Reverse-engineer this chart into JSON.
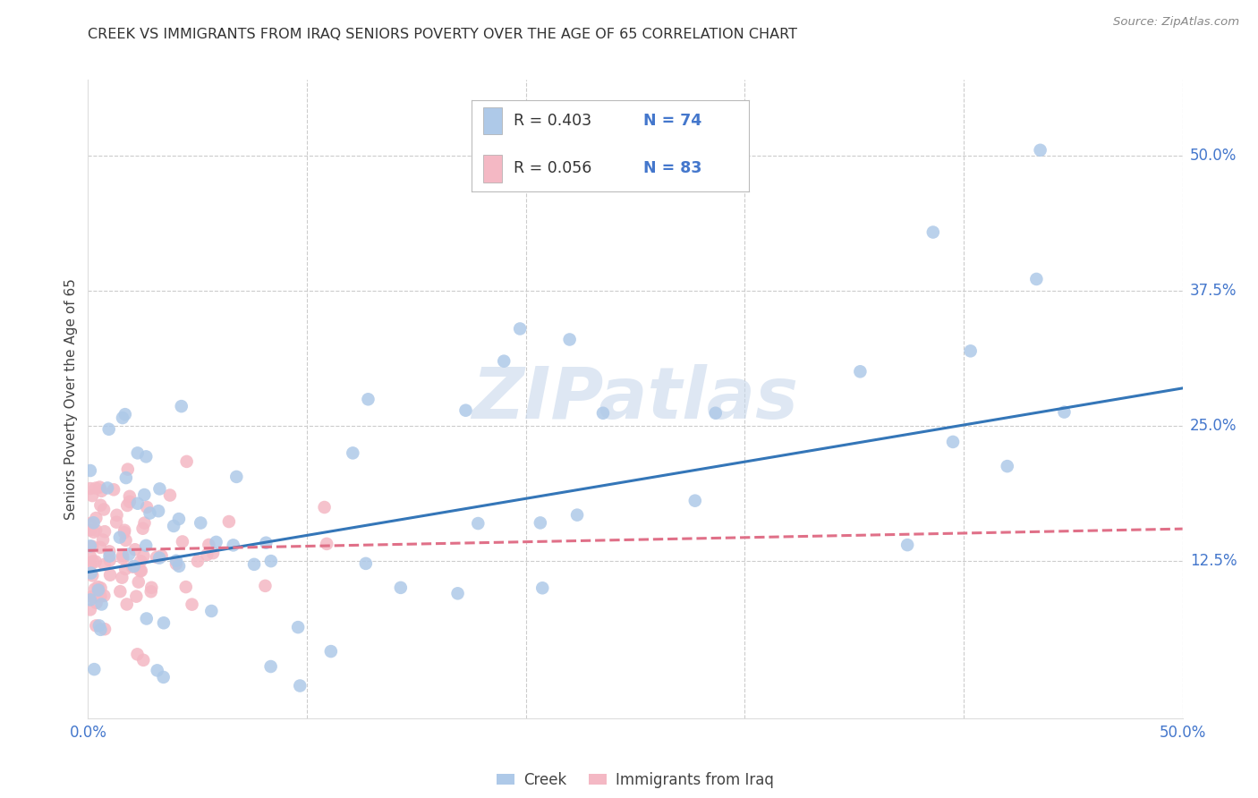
{
  "title": "CREEK VS IMMIGRANTS FROM IRAQ SENIORS POVERTY OVER THE AGE OF 65 CORRELATION CHART",
  "source": "Source: ZipAtlas.com",
  "ylabel": "Seniors Poverty Over the Age of 65",
  "xlim": [
    0.0,
    0.5
  ],
  "ylim": [
    -0.02,
    0.57
  ],
  "grid_color": "#cccccc",
  "background_color": "#ffffff",
  "creek_color": "#aec9e8",
  "creek_edge_color": "#aec9e8",
  "iraq_color": "#f4b8c4",
  "iraq_edge_color": "#f4b8c4",
  "creek_line_color": "#3476b8",
  "iraq_line_color": "#e07088",
  "legend_label_creek": "Creek",
  "legend_label_iraq": "Immigrants from Iraq",
  "watermark": "ZIPatlas",
  "creek_R": 0.403,
  "creek_N": 74,
  "iraq_R": 0.056,
  "iraq_N": 83,
  "creek_line_x0": 0.0,
  "creek_line_y0": 0.115,
  "creek_line_x1": 0.5,
  "creek_line_y1": 0.285,
  "iraq_line_x0": 0.0,
  "iraq_line_y0": 0.135,
  "iraq_line_x1": 0.5,
  "iraq_line_y1": 0.155
}
